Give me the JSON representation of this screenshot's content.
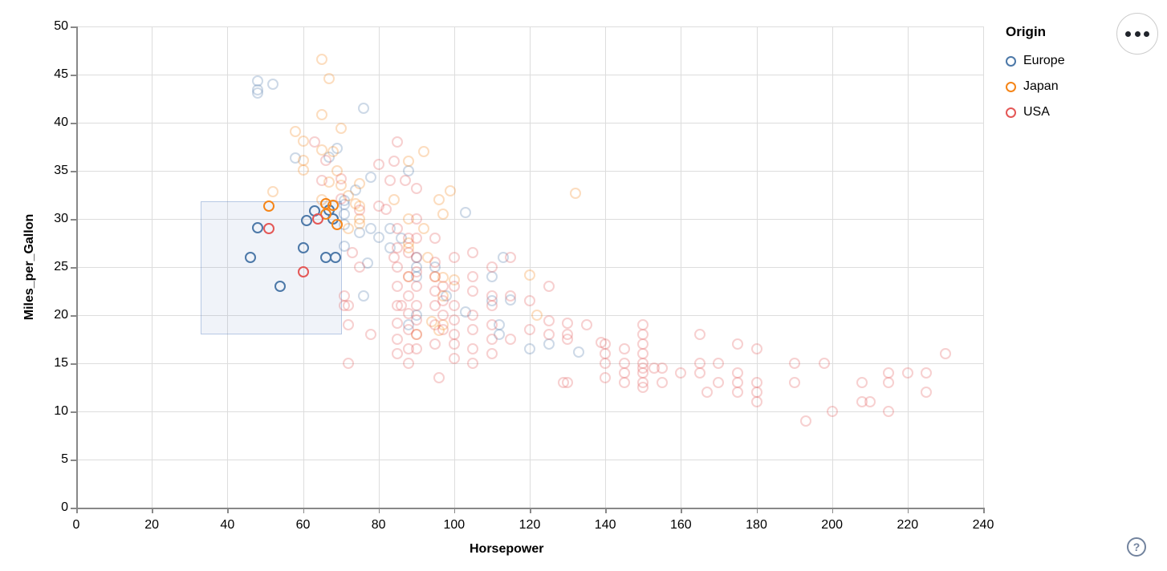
{
  "legend": {
    "title": "Origin",
    "items": [
      {
        "label": "Europe",
        "color": "#4c78a8"
      },
      {
        "label": "Japan",
        "color": "#f58518"
      },
      {
        "label": "USA",
        "color": "#e45756"
      }
    ]
  },
  "controls": {
    "menu_tooltip": "options",
    "help_label": "?"
  },
  "brush": {
    "hp_min": 33,
    "hp_max": 70.3,
    "mpg_min": 18,
    "mpg_max": 31.8
  },
  "chart_data": {
    "type": "scatter",
    "title": "",
    "xlabel": "Horsepower",
    "ylabel": "Miles_per_Gallon",
    "xlim": [
      0,
      240
    ],
    "ylim": [
      0,
      50
    ],
    "x_ticks": [
      0,
      20,
      40,
      60,
      80,
      100,
      120,
      140,
      160,
      180,
      200,
      220,
      240
    ],
    "y_ticks": [
      0,
      5,
      10,
      15,
      20,
      25,
      30,
      35,
      40,
      45,
      50
    ],
    "grid": true,
    "legend_position": "top-right",
    "legend_title": "Origin",
    "point_shape": "hollow-circle",
    "unselected_opacity": 0.28,
    "series": [
      {
        "name": "Europe",
        "color": "#4c78a8",
        "points": [
          [
            48,
            44.3
          ],
          [
            52,
            44
          ],
          [
            48,
            43.4
          ],
          [
            48,
            43.1
          ],
          [
            76,
            41.5
          ],
          [
            69,
            37.3
          ],
          [
            67,
            36.4
          ],
          [
            58,
            36.3
          ],
          [
            88,
            35
          ],
          [
            78,
            34.3
          ],
          [
            74,
            33
          ],
          [
            71,
            31.9
          ],
          [
            71,
            31.5
          ],
          [
            103,
            30.7
          ],
          [
            71,
            30.5
          ],
          [
            83,
            29
          ],
          [
            78,
            29
          ],
          [
            71,
            29.4
          ],
          [
            75,
            28.6
          ],
          [
            80,
            28.1
          ],
          [
            86,
            28
          ],
          [
            83,
            27
          ],
          [
            71,
            27.2
          ],
          [
            90,
            26
          ],
          [
            113,
            26
          ],
          [
            77,
            25.4
          ],
          [
            95,
            25
          ],
          [
            90,
            25
          ],
          [
            90,
            24
          ],
          [
            110,
            24
          ],
          [
            76,
            22
          ],
          [
            98,
            22
          ],
          [
            115,
            21.6
          ],
          [
            110,
            21.5
          ],
          [
            103,
            20.3
          ],
          [
            90,
            20
          ],
          [
            112,
            19
          ],
          [
            88,
            19
          ],
          [
            112,
            18
          ],
          [
            125,
            17
          ],
          [
            120,
            16.5
          ],
          [
            133,
            16.2
          ]
        ],
        "selected_points": [
          [
            46,
            26
          ],
          [
            48,
            29.1
          ],
          [
            54,
            23
          ],
          [
            60,
            27
          ],
          [
            61,
            29.8
          ],
          [
            63,
            30.8
          ],
          [
            66,
            26
          ],
          [
            68.5,
            26
          ],
          [
            67,
            30.9
          ],
          [
            68,
            30
          ]
        ]
      },
      {
        "name": "Japan",
        "color": "#f58518",
        "points": [
          [
            65,
            46.6
          ],
          [
            67,
            44.6
          ],
          [
            65,
            40.8
          ],
          [
            70,
            39.4
          ],
          [
            58,
            39.1
          ],
          [
            60,
            38.1
          ],
          [
            92,
            37
          ],
          [
            65,
            37.2
          ],
          [
            68,
            37
          ],
          [
            88,
            36
          ],
          [
            60,
            36.1
          ],
          [
            69,
            35
          ],
          [
            60,
            35.1
          ],
          [
            70,
            33.5
          ],
          [
            75,
            33.7
          ],
          [
            67,
            33.8
          ],
          [
            99,
            32.9
          ],
          [
            132,
            32.7
          ],
          [
            52,
            32.8
          ],
          [
            65,
            32
          ],
          [
            96,
            32
          ],
          [
            72,
            32.4
          ],
          [
            84,
            32
          ],
          [
            75,
            31.3
          ],
          [
            74,
            31.6
          ],
          [
            88,
            30
          ],
          [
            97,
            30.5
          ],
          [
            75,
            30
          ],
          [
            92,
            29
          ],
          [
            72,
            29
          ],
          [
            75,
            29.5
          ],
          [
            88,
            27.5
          ],
          [
            88,
            27
          ],
          [
            93,
            26
          ],
          [
            95,
            24
          ],
          [
            88,
            24
          ],
          [
            120,
            24.2
          ],
          [
            97,
            23.9
          ],
          [
            100,
            23.7
          ],
          [
            97,
            22
          ],
          [
            122,
            20
          ],
          [
            94,
            19.3
          ],
          [
            96,
            18.4
          ],
          [
            97,
            19
          ],
          [
            90,
            18
          ]
        ],
        "selected_points": [
          [
            51,
            31.3
          ],
          [
            66,
            31.6
          ],
          [
            68,
            31.4
          ],
          [
            66,
            30.5
          ],
          [
            69,
            29.4
          ]
        ]
      },
      {
        "name": "USA",
        "color": "#e45756",
        "points": [
          [
            63,
            38
          ],
          [
            85,
            38
          ],
          [
            66,
            36.1
          ],
          [
            84,
            36
          ],
          [
            80,
            35.7
          ],
          [
            87,
            34
          ],
          [
            83,
            34
          ],
          [
            90,
            33.2
          ],
          [
            70,
            34.2
          ],
          [
            65,
            34
          ],
          [
            70,
            32.1
          ],
          [
            80,
            31.3
          ],
          [
            82,
            31
          ],
          [
            75,
            30.9
          ],
          [
            90,
            30
          ],
          [
            73,
            26.5
          ],
          [
            71,
            22
          ],
          [
            71,
            21
          ],
          [
            72,
            21
          ],
          [
            72,
            19
          ],
          [
            75,
            25
          ],
          [
            72,
            15
          ],
          [
            78,
            18
          ],
          [
            84,
            26
          ],
          [
            86,
            21
          ],
          [
            96,
            13.5
          ],
          [
            85,
            29
          ],
          [
            85,
            27
          ],
          [
            85,
            25
          ],
          [
            85,
            23
          ],
          [
            85,
            21
          ],
          [
            85,
            19.2
          ],
          [
            85,
            17.5
          ],
          [
            85,
            16
          ],
          [
            88,
            28
          ],
          [
            88,
            26.5
          ],
          [
            88,
            24
          ],
          [
            88,
            22
          ],
          [
            88,
            20.2
          ],
          [
            88,
            18.5
          ],
          [
            88,
            16.5
          ],
          [
            88,
            15
          ],
          [
            90,
            28
          ],
          [
            90,
            26
          ],
          [
            90,
            24.5
          ],
          [
            90,
            23
          ],
          [
            90,
            21
          ],
          [
            90,
            19.5
          ],
          [
            90,
            18
          ],
          [
            90,
            16.5
          ],
          [
            95,
            28
          ],
          [
            95,
            25.5
          ],
          [
            95,
            24
          ],
          [
            95,
            22.5
          ],
          [
            95,
            21
          ],
          [
            95,
            19
          ],
          [
            95,
            17
          ],
          [
            97,
            23
          ],
          [
            97,
            21.5
          ],
          [
            97,
            20
          ],
          [
            97,
            18.5
          ],
          [
            100,
            26
          ],
          [
            100,
            23
          ],
          [
            100,
            21
          ],
          [
            100,
            19.5
          ],
          [
            100,
            18
          ],
          [
            100,
            17
          ],
          [
            100,
            15.5
          ],
          [
            105,
            26.5
          ],
          [
            105,
            24
          ],
          [
            105,
            22.5
          ],
          [
            105,
            20
          ],
          [
            105,
            18.5
          ],
          [
            105,
            16.5
          ],
          [
            105,
            15
          ],
          [
            110,
            25
          ],
          [
            110,
            22
          ],
          [
            110,
            21
          ],
          [
            110,
            19
          ],
          [
            110,
            17.5
          ],
          [
            110,
            16
          ],
          [
            115,
            26
          ],
          [
            115,
            22
          ],
          [
            115,
            17.5
          ],
          [
            120,
            21.5
          ],
          [
            120,
            18.5
          ],
          [
            125,
            23
          ],
          [
            125,
            19.4
          ],
          [
            125,
            18
          ],
          [
            129,
            13
          ],
          [
            130,
            19.2
          ],
          [
            130,
            18
          ],
          [
            130,
            17.5
          ],
          [
            130,
            13
          ],
          [
            135,
            19
          ],
          [
            139,
            17.2
          ],
          [
            140,
            17
          ],
          [
            140,
            16
          ],
          [
            140,
            15
          ],
          [
            140,
            13.5
          ],
          [
            145,
            16.5
          ],
          [
            145,
            15
          ],
          [
            145,
            14
          ],
          [
            145,
            13
          ],
          [
            150,
            19
          ],
          [
            150,
            18
          ],
          [
            150,
            17
          ],
          [
            150,
            16
          ],
          [
            150,
            15
          ],
          [
            150,
            14.5
          ],
          [
            150,
            14
          ],
          [
            150,
            13
          ],
          [
            150,
            12.5
          ],
          [
            153,
            14.5
          ],
          [
            155,
            14.5
          ],
          [
            155,
            13
          ],
          [
            160,
            14
          ],
          [
            165,
            18
          ],
          [
            165,
            15
          ],
          [
            165,
            14
          ],
          [
            167,
            12
          ],
          [
            170,
            15
          ],
          [
            170,
            13
          ],
          [
            175,
            17
          ],
          [
            175,
            14
          ],
          [
            175,
            13
          ],
          [
            175,
            12
          ],
          [
            180,
            16.5
          ],
          [
            180,
            13
          ],
          [
            180,
            12
          ],
          [
            180,
            11
          ],
          [
            190,
            15
          ],
          [
            190,
            13
          ],
          [
            193,
            9
          ],
          [
            198,
            15
          ],
          [
            200,
            10
          ],
          [
            208,
            13
          ],
          [
            208,
            11
          ],
          [
            210,
            11
          ],
          [
            215,
            14
          ],
          [
            215,
            13
          ],
          [
            215,
            10
          ],
          [
            220,
            14
          ],
          [
            225,
            14
          ],
          [
            225,
            12
          ],
          [
            230,
            16
          ]
        ],
        "selected_points": [
          [
            51,
            29
          ],
          [
            60,
            24.5
          ],
          [
            64,
            30
          ]
        ]
      }
    ]
  }
}
